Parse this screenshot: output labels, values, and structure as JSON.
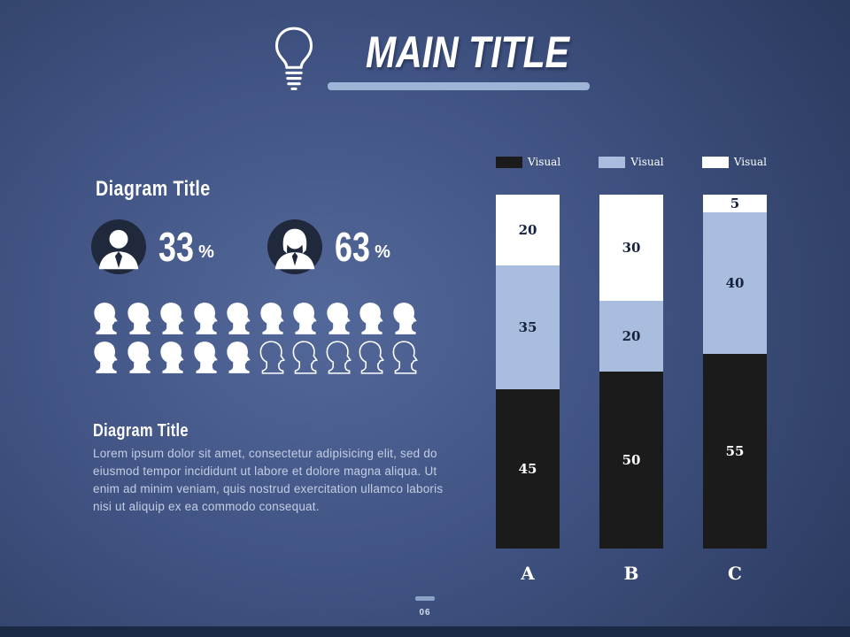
{
  "page": {
    "main_title": "MAIN TITLE",
    "page_number": "06"
  },
  "left": {
    "diagram_title_1": "Diagram Title",
    "stats": [
      {
        "value": "33",
        "unit": "%"
      },
      {
        "value": "63",
        "unit": "%"
      }
    ],
    "diagram_title_2": "Diagram Title",
    "body_text": "Lorem ipsum dolor sit amet, consectetur adipisicing elit, sed do eiusmod tempor incididunt ut labore et dolore magna aliqua. Ut enim ad minim veniam, quis nostrud exercitation ullamco laboris nisi ut aliquip ex ea commodo consequat."
  },
  "pictogram": {
    "total": 20,
    "filled": 15
  },
  "chart_data": {
    "type": "bar",
    "stacked": true,
    "categories": [
      "A",
      "B",
      "C"
    ],
    "series": [
      {
        "name": "Visual",
        "color": "#1b1b1b",
        "text_color": "#ffffff",
        "values": [
          45,
          50,
          55
        ]
      },
      {
        "name": "Visual",
        "color": "#a9bedf",
        "text_color": "#16213c",
        "values": [
          35,
          20,
          40
        ]
      },
      {
        "name": "Visual",
        "color": "#ffffff",
        "text_color": "#16213c",
        "values": [
          20,
          30,
          5
        ]
      }
    ],
    "legend": [
      {
        "label": "Visual",
        "color": "#1b1b1b"
      },
      {
        "label": "Visual",
        "color": "#a9bedf"
      },
      {
        "label": "Visual",
        "color": "#ffffff"
      }
    ],
    "ylim": [
      0,
      100
    ],
    "legend_position": "top",
    "grid": false
  },
  "colors": {
    "accent_light_blue": "#9fb5d8",
    "bar_black": "#1b1b1b",
    "bar_blue": "#a9bedf",
    "bar_white": "#ffffff",
    "background_dark": "#2b3a5f"
  }
}
